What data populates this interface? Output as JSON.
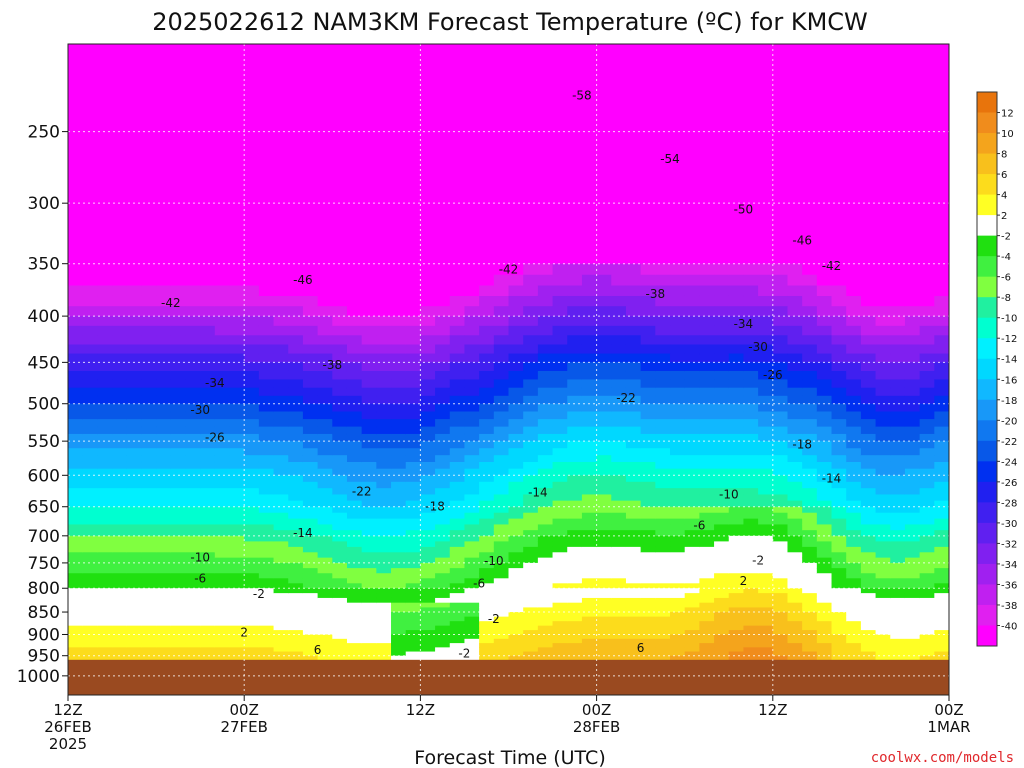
{
  "chart_data": {
    "type": "heatmap",
    "title": "2025022612 NAM3KM Forecast Temperature (ºC) for KMCW",
    "xlabel": "Forecast Time (UTC)",
    "ylabel": "",
    "x_ticks": [
      {
        "hour": 0,
        "line1": "12Z",
        "line2": "26FEB",
        "line3": "2025"
      },
      {
        "hour": 12,
        "line1": "00Z",
        "line2": "27FEB",
        "line3": ""
      },
      {
        "hour": 24,
        "line1": "12Z",
        "line2": "",
        "line3": ""
      },
      {
        "hour": 36,
        "line1": "00Z",
        "line2": "28FEB",
        "line3": ""
      },
      {
        "hour": 48,
        "line1": "12Z",
        "line2": "",
        "line3": ""
      },
      {
        "hour": 60,
        "line1": "00Z",
        "line2": "1MAR",
        "line3": ""
      }
    ],
    "xlim": [
      0,
      60
    ],
    "y_ticks": [
      250,
      300,
      350,
      400,
      450,
      500,
      550,
      600,
      650,
      700,
      750,
      800,
      850,
      900,
      950,
      1000
    ],
    "ylim": [
      1050,
      200
    ],
    "y_scale": "log",
    "colorbar_ticks": [
      "12",
      "10",
      "8",
      "6",
      "4",
      "2",
      "-2",
      "-4",
      "-6",
      "-8",
      "-10",
      "-12",
      "-14",
      "-16",
      "-18",
      "-20",
      "-22",
      "-24",
      "-26",
      "-28",
      "-30",
      "-32",
      "-34",
      "-36",
      "-38",
      "-40"
    ],
    "colorbar_colors": [
      "#e8740c",
      "#f08c1c",
      "#f4a41c",
      "#f8c01c",
      "#fcdc1c",
      "#ffff24",
      "#ffffff",
      "#20e010",
      "#40f040",
      "#80ff40",
      "#20f0a0",
      "#00ffd0",
      "#00f0ff",
      "#00d8ff",
      "#10b8ff",
      "#1898f8",
      "#1078f0",
      "#0858e8",
      "#0030f0",
      "#2020f0",
      "#4020f0",
      "#6020f0",
      "#8020f0",
      "#a020f0",
      "#c020f0",
      "#e020f0",
      "#ff00ff"
    ],
    "temperature_profile": [
      {
        "p": 200,
        "t": -60
      },
      {
        "p": 250,
        "t": -55
      },
      {
        "p": 300,
        "t": -48
      },
      {
        "p": 350,
        "t": -43
      },
      {
        "p": 400,
        "t": -36
      },
      {
        "p": 450,
        "t": -29
      },
      {
        "p": 500,
        "t": -24
      },
      {
        "p": 550,
        "t": -19
      },
      {
        "p": 600,
        "t": -15
      },
      {
        "p": 650,
        "t": -12
      },
      {
        "p": 700,
        "t": -8
      },
      {
        "p": 750,
        "t": -5
      },
      {
        "p": 800,
        "t": -2
      },
      {
        "p": 850,
        "t": 1
      },
      {
        "p": 900,
        "t": 3
      },
      {
        "p": 950,
        "t": 5
      }
    ],
    "ground_pressure": 960,
    "contour_labels": [
      {
        "text": "-58",
        "hour": 35,
        "p": 228
      },
      {
        "text": "-54",
        "hour": 41,
        "p": 268
      },
      {
        "text": "-50",
        "hour": 46,
        "p": 305
      },
      {
        "text": "-46",
        "hour": 50,
        "p": 330
      },
      {
        "text": "-46",
        "hour": 16,
        "p": 365
      },
      {
        "text": "-42",
        "hour": 30,
        "p": 355
      },
      {
        "text": "-42",
        "hour": 52,
        "p": 352
      },
      {
        "text": "-42",
        "hour": 7,
        "p": 387
      },
      {
        "text": "-38",
        "hour": 40,
        "p": 378
      },
      {
        "text": "-38",
        "hour": 18,
        "p": 453
      },
      {
        "text": "-34",
        "hour": 46,
        "p": 408
      },
      {
        "text": "-34",
        "hour": 10,
        "p": 474
      },
      {
        "text": "-30",
        "hour": 47,
        "p": 433
      },
      {
        "text": "-30",
        "hour": 9,
        "p": 508
      },
      {
        "text": "-26",
        "hour": 48,
        "p": 465
      },
      {
        "text": "-26",
        "hour": 10,
        "p": 545
      },
      {
        "text": "-22",
        "hour": 38,
        "p": 493
      },
      {
        "text": "-22",
        "hour": 20,
        "p": 625
      },
      {
        "text": "-18",
        "hour": 50,
        "p": 555
      },
      {
        "text": "-18",
        "hour": 25,
        "p": 650
      },
      {
        "text": "-14",
        "hour": 32,
        "p": 627
      },
      {
        "text": "-14",
        "hour": 52,
        "p": 605
      },
      {
        "text": "-14",
        "hour": 16,
        "p": 695
      },
      {
        "text": "-10",
        "hour": 45,
        "p": 630
      },
      {
        "text": "-10",
        "hour": 9,
        "p": 740
      },
      {
        "text": "-10",
        "hour": 29,
        "p": 746
      },
      {
        "text": "-6",
        "hour": 43,
        "p": 682
      },
      {
        "text": "-6",
        "hour": 9,
        "p": 780
      },
      {
        "text": "-6",
        "hour": 28,
        "p": 790
      },
      {
        "text": "-2",
        "hour": 47,
        "p": 745
      },
      {
        "text": "-2",
        "hour": 13,
        "p": 812
      },
      {
        "text": "-2",
        "hour": 29,
        "p": 865
      },
      {
        "text": "-2",
        "hour": 27,
        "p": 945
      },
      {
        "text": "2",
        "hour": 46,
        "p": 785
      },
      {
        "text": "2",
        "hour": 12,
        "p": 895
      },
      {
        "text": "6",
        "hour": 39,
        "p": 932
      },
      {
        "text": "6",
        "hour": 17,
        "p": 936
      }
    ],
    "grid": true,
    "credit": "coolwx.com/models"
  }
}
